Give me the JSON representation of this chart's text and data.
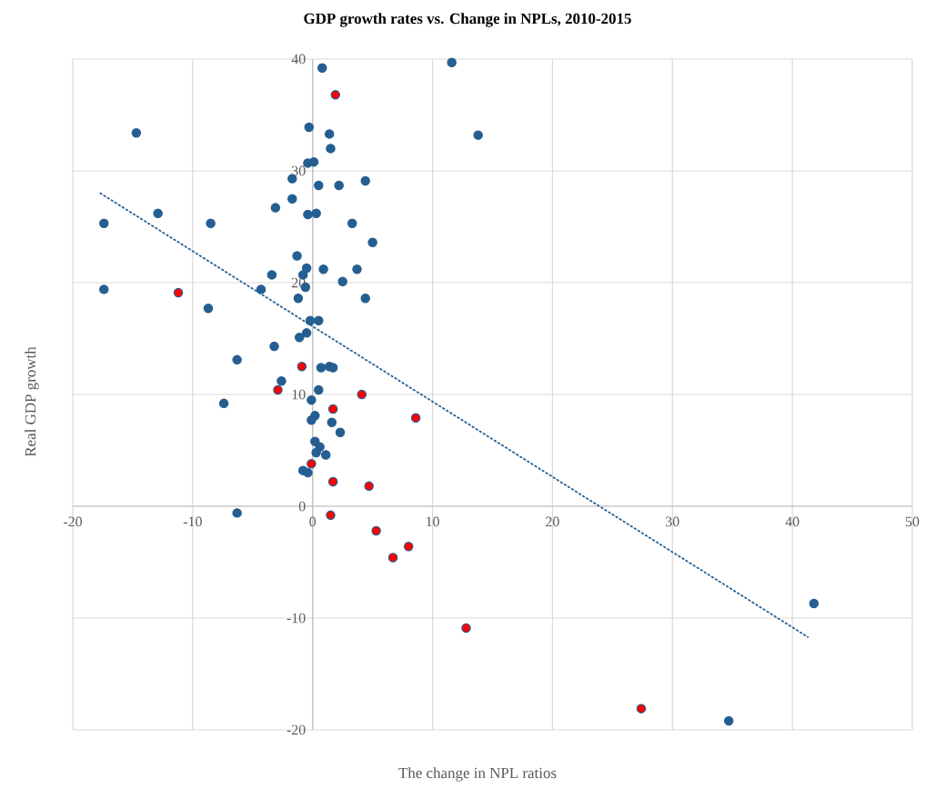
{
  "chart_data": {
    "type": "scatter",
    "title": "GDP growth rates vs. Change in NPLs, 2010-2015",
    "xlabel": "The change in NPL ratios",
    "ylabel": "Real GDP growth",
    "xlim": [
      -20,
      50
    ],
    "ylim": [
      -20,
      40
    ],
    "xticks": [
      -20,
      -10,
      0,
      10,
      20,
      30,
      40,
      50
    ],
    "yticks": [
      -20,
      -10,
      0,
      10,
      20,
      30,
      40
    ],
    "grid": true,
    "series": [
      {
        "color": "#255e91",
        "marker": "circle",
        "x": [
          0.8,
          -14.7,
          -0.3,
          1.4,
          1.5,
          -0.4,
          0.1,
          -1.7,
          0.5,
          2.2,
          4.4,
          -1.7,
          -3.1,
          -0.4,
          0.3,
          -12.9,
          -17.4,
          -8.5,
          3.3,
          5.0,
          -1.3,
          -0.5,
          -0.8,
          0.9,
          3.7,
          -3.4,
          2.5,
          -0.6,
          -4.3,
          -17.4,
          -1.2,
          4.4,
          -8.7,
          11.6,
          13.8,
          -0.2,
          0.5,
          -0.5,
          -1.1,
          -3.2,
          -6.3,
          0.7,
          1.4,
          1.7,
          -2.6,
          0.5,
          -0.1,
          -7.4,
          0.2,
          -0.1,
          1.6,
          2.3,
          0.2,
          0.6,
          0.3,
          1.1,
          -0.8,
          -0.4,
          -6.3,
          34.7,
          41.8
        ],
        "values": [
          39.2,
          33.4,
          33.9,
          33.3,
          32.0,
          30.7,
          30.8,
          29.3,
          28.7,
          28.7,
          29.1,
          27.5,
          26.7,
          26.1,
          26.2,
          26.2,
          25.3,
          25.3,
          25.3,
          23.6,
          22.4,
          21.3,
          20.7,
          21.2,
          21.2,
          20.7,
          20.1,
          19.6,
          19.4,
          19.4,
          18.6,
          18.6,
          17.7,
          39.7,
          33.2,
          16.6,
          16.6,
          15.5,
          15.1,
          14.3,
          13.1,
          12.4,
          12.5,
          12.4,
          11.2,
          10.4,
          9.5,
          9.2,
          8.1,
          7.7,
          7.5,
          6.6,
          5.8,
          5.3,
          4.8,
          4.6,
          3.2,
          3.0,
          -0.6,
          -19.2,
          -8.7
        ]
      },
      {
        "color": "#ff0000",
        "marker": "circle",
        "x": [
          1.9,
          -11.2,
          -0.9,
          -2.9,
          4.1,
          1.7,
          8.6,
          -0.1,
          1.7,
          4.7,
          1.5,
          5.3,
          6.7,
          8.0,
          12.8,
          27.4
        ],
        "values": [
          36.8,
          19.1,
          12.5,
          10.4,
          10.0,
          8.7,
          7.9,
          3.8,
          2.2,
          1.8,
          -0.8,
          -2.2,
          -4.6,
          -3.6,
          -10.9,
          -18.1
        ]
      },
      {
        "type": "line",
        "color": "#255e91",
        "line_style": "dotted",
        "marker": "none",
        "x": [
          -17.7,
          41.3
        ],
        "values": [
          28.0,
          -11.7
        ]
      }
    ]
  }
}
